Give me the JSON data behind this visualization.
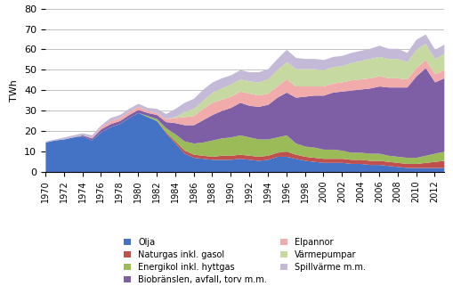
{
  "years": [
    1970,
    1971,
    1972,
    1973,
    1974,
    1975,
    1976,
    1977,
    1978,
    1979,
    1980,
    1981,
    1982,
    1983,
    1984,
    1985,
    1986,
    1987,
    1988,
    1989,
    1990,
    1991,
    1992,
    1993,
    1994,
    1995,
    1996,
    1997,
    1998,
    1999,
    2000,
    2001,
    2002,
    2003,
    2004,
    2005,
    2006,
    2007,
    2008,
    2009,
    2010,
    2011,
    2012,
    2013
  ],
  "series": {
    "Olja": [
      14.5,
      15.5,
      16.0,
      17.0,
      17.5,
      15.5,
      19.5,
      22.0,
      23.5,
      26.5,
      29.0,
      27.0,
      25.0,
      19.0,
      14.0,
      9.0,
      7.0,
      6.5,
      6.0,
      6.0,
      6.0,
      6.5,
      6.0,
      5.5,
      6.0,
      7.5,
      7.5,
      6.5,
      5.5,
      5.0,
      4.5,
      4.5,
      4.5,
      4.0,
      4.0,
      3.5,
      3.5,
      3.0,
      2.5,
      2.0,
      2.0,
      2.0,
      2.0,
      2.0
    ],
    "Naturgas inkl. gasol": [
      0.0,
      0.0,
      0.0,
      0.0,
      0.0,
      0.0,
      0.0,
      0.0,
      0.0,
      0.0,
      0.0,
      0.0,
      0.0,
      0.5,
      1.0,
      1.5,
      1.5,
      1.5,
      1.5,
      2.0,
      2.0,
      2.0,
      2.0,
      2.0,
      2.0,
      2.0,
      2.5,
      2.0,
      2.0,
      2.0,
      2.0,
      2.0,
      2.0,
      2.0,
      2.0,
      2.0,
      2.0,
      2.0,
      2.0,
      2.0,
      2.0,
      2.5,
      3.0,
      3.5
    ],
    "Energikol inkl. hyttgas": [
      0.0,
      0.0,
      0.0,
      0.0,
      0.0,
      0.0,
      0.0,
      0.0,
      0.0,
      0.0,
      0.0,
      0.5,
      1.0,
      2.0,
      3.5,
      4.5,
      5.5,
      6.5,
      8.0,
      8.5,
      9.0,
      9.5,
      9.0,
      8.5,
      8.0,
      7.5,
      8.0,
      5.5,
      5.0,
      5.0,
      4.5,
      4.5,
      4.0,
      3.5,
      3.5,
      3.5,
      3.5,
      3.0,
      3.0,
      3.0,
      3.0,
      3.5,
      4.0,
      4.5
    ],
    "Biobränslen, avfall, torv m.m.": [
      0.0,
      0.0,
      0.0,
      0.0,
      0.5,
      1.0,
      1.5,
      1.5,
      1.5,
      1.5,
      1.5,
      1.5,
      2.0,
      3.0,
      5.5,
      8.0,
      9.0,
      11.0,
      12.5,
      13.5,
      14.5,
      16.0,
      15.5,
      16.0,
      17.0,
      19.5,
      21.0,
      22.5,
      24.5,
      25.5,
      26.5,
      28.0,
      29.0,
      30.5,
      31.0,
      32.0,
      33.0,
      33.5,
      34.0,
      34.5,
      40.0,
      43.0,
      35.0,
      36.0
    ],
    "Elpannor": [
      0.0,
      0.0,
      0.0,
      0.0,
      0.0,
      0.5,
      1.0,
      1.5,
      1.5,
      1.5,
      1.5,
      1.0,
      1.0,
      1.5,
      2.5,
      4.0,
      4.5,
      5.5,
      6.0,
      5.5,
      5.5,
      5.5,
      6.0,
      5.5,
      5.5,
      5.5,
      6.5,
      5.5,
      5.0,
      4.5,
      4.5,
      4.5,
      4.5,
      5.0,
      5.0,
      5.0,
      5.0,
      4.5,
      4.5,
      4.0,
      4.0,
      4.0,
      4.0,
      4.0
    ],
    "Värmepumpar": [
      0.0,
      0.0,
      0.0,
      0.0,
      0.0,
      0.0,
      0.0,
      0.0,
      0.0,
      0.0,
      0.0,
      0.0,
      0.0,
      0.0,
      0.5,
      2.5,
      3.5,
      4.0,
      5.0,
      5.5,
      6.0,
      6.0,
      6.0,
      6.5,
      7.0,
      8.0,
      8.5,
      8.5,
      8.5,
      8.5,
      8.0,
      8.0,
      8.0,
      8.5,
      9.0,
      9.5,
      9.5,
      9.5,
      9.5,
      8.5,
      9.0,
      8.0,
      7.5,
      8.0
    ],
    "Spillvärme m.m.": [
      0.5,
      0.5,
      1.0,
      1.0,
      1.0,
      1.0,
      1.0,
      1.5,
      1.5,
      1.5,
      1.5,
      1.5,
      2.0,
      2.5,
      4.0,
      4.5,
      5.0,
      5.5,
      5.0,
      5.0,
      4.5,
      4.5,
      4.5,
      5.0,
      5.0,
      5.5,
      6.0,
      5.5,
      5.0,
      5.0,
      5.0,
      5.0,
      5.0,
      5.0,
      5.0,
      5.0,
      5.5,
      5.0,
      5.0,
      4.5,
      5.0,
      4.5,
      4.5,
      4.5
    ]
  },
  "colors": {
    "Olja": "#4472C4",
    "Naturgas inkl. gasol": "#C0504D",
    "Energikol inkl. hyttgas": "#9BBB59",
    "Biobränslen, avfall, torv m.m.": "#7E5FA6",
    "Elpannor": "#F2ABAB",
    "Värmepumpar": "#C6D9A0",
    "Spillvärme m.m.": "#C4B9D6"
  },
  "ylabel": "TWh",
  "ylim": [
    0,
    80
  ],
  "yticks": [
    0,
    10,
    20,
    30,
    40,
    50,
    60,
    70,
    80
  ],
  "stack_order": [
    "Olja",
    "Naturgas inkl. gasol",
    "Energikol inkl. hyttgas",
    "Biobränslen, avfall, torv m.m.",
    "Elpannor",
    "Värmepumpar",
    "Spillvärme m.m."
  ],
  "legend_col1": [
    "Olja",
    "Energikol inkl. hyttgas",
    "Elpannor",
    "Spillvärme m.m."
  ],
  "legend_col2": [
    "Naturgas inkl. gasol",
    "Biobränslen, avfall, torv m.m.",
    "Värmepumpar"
  ]
}
